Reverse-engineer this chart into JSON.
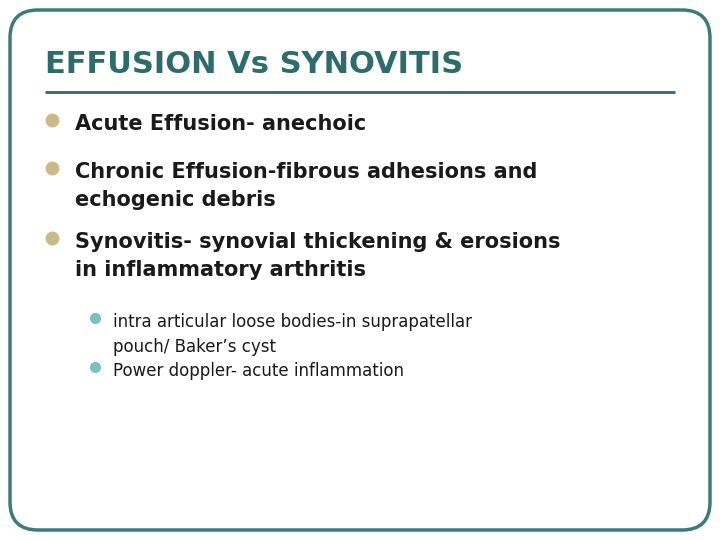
{
  "title": "EFFUSION Vs SYNOVITIS",
  "title_color": "#2E6B6B",
  "title_fontsize": 22,
  "title_fontweight": "bold",
  "background_color": "#FFFFFF",
  "border_color": "#3D7A7A",
  "line_color": "#2E6B6B",
  "bullet_color": "#C8BB8A",
  "sub_bullet_color": "#7BBFBF",
  "text_color": "#1A1A1A",
  "bullets": [
    "Acute Effusion- anechoic",
    "Chronic Effusion-fibrous adhesions and\nechogenic debris",
    "Synovitis- synovial thickening & erosions\nin inflammatory arthritis"
  ],
  "sub_bullets": [
    "intra articular loose bodies-in suprapatellar\npouch/ Baker’s cyst",
    "Power doppler- acute inflammation"
  ],
  "bullet_fontsize": 15,
  "sub_bullet_fontsize": 12
}
